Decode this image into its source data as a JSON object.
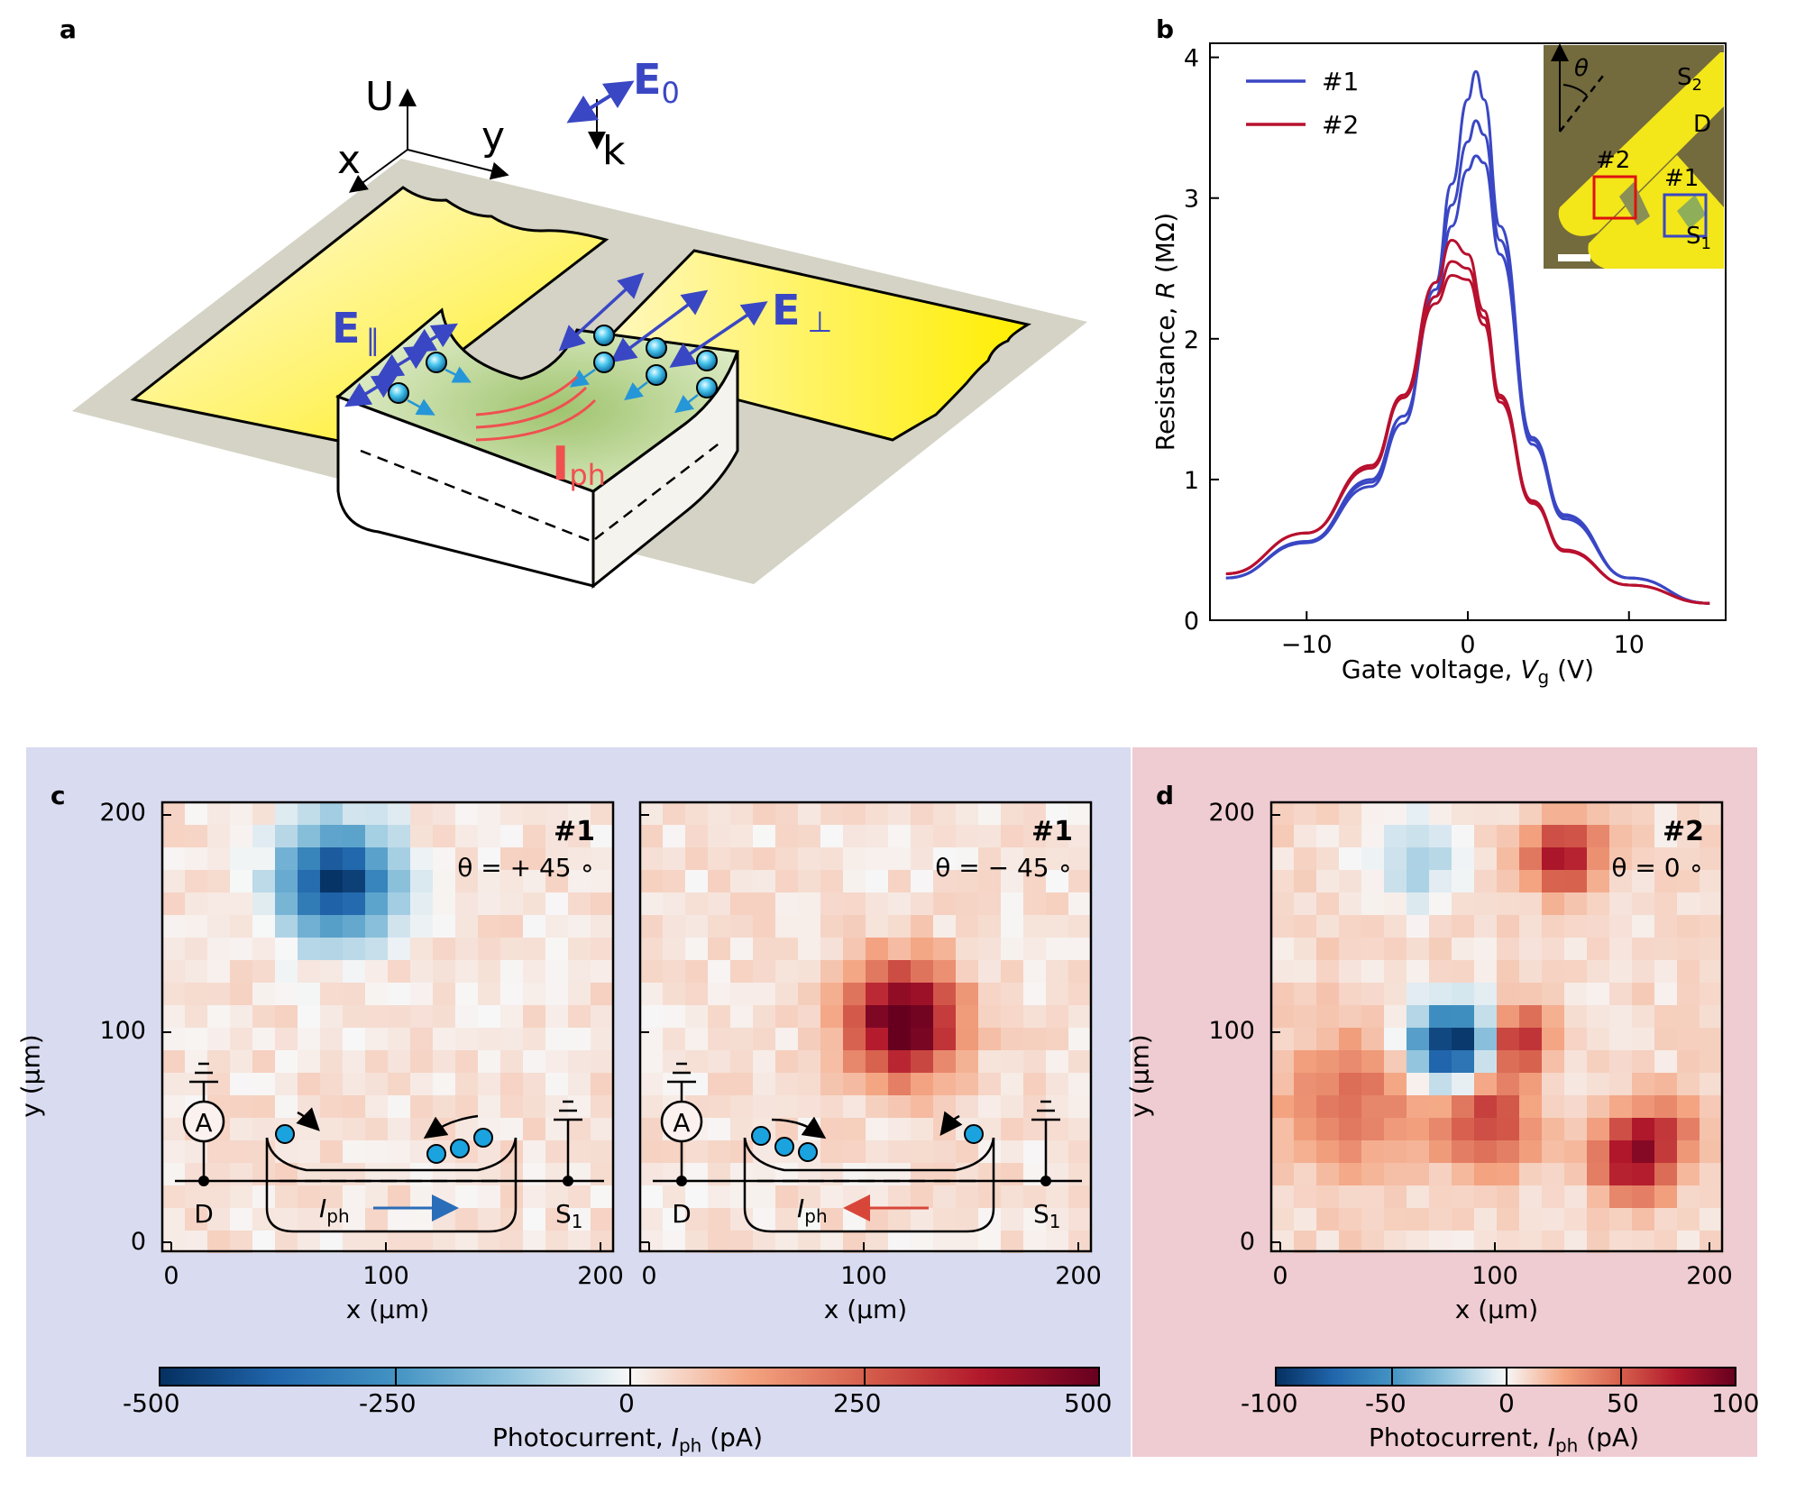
{
  "panels": {
    "a": {
      "letter": "a",
      "axis_u": "U",
      "axis_x": "x",
      "axis_y": "y",
      "k_label": "k",
      "e0": "E",
      "e0_sub": "0",
      "e_par": "E",
      "e_par_sub": "∥",
      "e_perp": "E",
      "e_perp_sub": "⊥",
      "iph": "I",
      "iph_sub": "ph"
    },
    "b": {
      "letter": "b",
      "xlabel_pre": "Gate voltage, ",
      "xlabel_var": "V",
      "xlabel_sub": "g",
      "xlabel_post": " (V)",
      "ylabel_pre": "Resistance, ",
      "ylabel_var": "R",
      "ylabel_post": " (MΩ)",
      "legend": [
        {
          "label": "#1",
          "color": "#3a47c4"
        },
        {
          "label": "#2",
          "color": "#b8102e"
        }
      ],
      "inset": {
        "theta": "θ",
        "s2": "S",
        "s2_sub": "2",
        "d": "D",
        "s1": "S",
        "s1_sub": "1",
        "m2": "#2",
        "m1": "#1"
      }
    },
    "c": {
      "letter": "c",
      "left": {
        "tag": "#1",
        "theta": "θ = + 45 ∘"
      },
      "right": {
        "tag": "#1",
        "theta": "θ = − 45 ∘"
      },
      "ylabel": "y (μm)",
      "xlabel": "x (μm)",
      "xticks_left": [
        "0",
        "100",
        "200"
      ],
      "xticks_right": [
        "0",
        "100",
        "200"
      ],
      "yticks": [
        "0",
        "100",
        "200"
      ],
      "schematic": {
        "ammeter": "A",
        "d": "D",
        "s1": "S",
        "s1_sub": "1",
        "iph": "I",
        "iph_sub": "ph"
      },
      "colorbar": {
        "ticks": [
          "-500",
          "-250",
          "0",
          "250",
          "500"
        ],
        "label_pre": "Photocurrent, ",
        "label_var": "I",
        "label_sub": "ph",
        "label_post": " (pA)"
      }
    },
    "d": {
      "letter": "d",
      "tag": "#2",
      "theta": "θ = 0 ∘",
      "ylabel": "y (μm)",
      "xlabel": "x (μm)",
      "xticks": [
        "0",
        "100",
        "200"
      ],
      "yticks": [
        "0",
        "100",
        "200"
      ],
      "colorbar": {
        "ticks": [
          "-100",
          "-50",
          "0",
          "50",
          "100"
        ],
        "label_pre": "Photocurrent, ",
        "label_var": "I",
        "label_sub": "ph",
        "label_post": " (pA)"
      }
    }
  },
  "chart_data": {
    "type": "line",
    "title": "",
    "xlabel": "Gate voltage, Vg (V)",
    "ylabel": "Resistance, R (MΩ)",
    "xlim": [
      -16,
      16
    ],
    "ylim": [
      0,
      4.1
    ],
    "xticks": [
      -10,
      0,
      10
    ],
    "yticks": [
      0,
      1,
      2,
      3,
      4
    ],
    "series": [
      {
        "name": "#1",
        "color": "#3a47c4",
        "x": [
          -15,
          -10,
          -6,
          -4,
          -2,
          -1,
          0,
          0.5,
          1,
          2,
          4,
          6,
          10,
          15
        ],
        "y": [
          0.3,
          0.55,
          0.95,
          1.4,
          2.4,
          3.1,
          3.7,
          3.9,
          3.7,
          2.8,
          1.3,
          0.75,
          0.3,
          0.12
        ]
      },
      {
        "name": "#1",
        "color": "#3a47c4",
        "x": [
          -15,
          -10,
          -6,
          -4,
          -2,
          -1,
          0,
          0.5,
          1,
          2,
          4,
          6,
          10,
          15
        ],
        "y": [
          0.3,
          0.56,
          0.98,
          1.45,
          2.35,
          2.95,
          3.4,
          3.55,
          3.45,
          2.7,
          1.28,
          0.74,
          0.3,
          0.12
        ]
      },
      {
        "name": "#1",
        "color": "#3a47c4",
        "x": [
          -15,
          -10,
          -6,
          -4,
          -2,
          -1,
          0,
          0.5,
          1,
          2,
          4,
          6,
          10,
          15
        ],
        "y": [
          0.3,
          0.56,
          1.0,
          1.45,
          2.3,
          2.8,
          3.2,
          3.3,
          3.25,
          2.6,
          1.25,
          0.72,
          0.3,
          0.12
        ]
      },
      {
        "name": "#2",
        "color": "#b8102e",
        "x": [
          -15,
          -10,
          -6,
          -4,
          -2,
          -1,
          0,
          1,
          2,
          4,
          6,
          10,
          15
        ],
        "y": [
          0.33,
          0.62,
          1.1,
          1.6,
          2.4,
          2.7,
          2.6,
          2.2,
          1.6,
          0.85,
          0.5,
          0.25,
          0.12
        ]
      },
      {
        "name": "#2",
        "color": "#b8102e",
        "x": [
          -15,
          -10,
          -6,
          -4,
          -2,
          -1,
          0,
          1,
          2,
          4,
          6,
          10,
          15
        ],
        "y": [
          0.33,
          0.62,
          1.1,
          1.6,
          2.3,
          2.55,
          2.5,
          2.15,
          1.58,
          0.84,
          0.5,
          0.25,
          0.12
        ]
      },
      {
        "name": "#2",
        "color": "#b8102e",
        "x": [
          -15,
          -10,
          -6,
          -4,
          -2,
          -1,
          0,
          1,
          2,
          4,
          6,
          10,
          15
        ],
        "y": [
          0.33,
          0.62,
          1.08,
          1.58,
          2.25,
          2.45,
          2.42,
          2.1,
          1.55,
          0.83,
          0.49,
          0.25,
          0.12
        ]
      }
    ]
  }
}
